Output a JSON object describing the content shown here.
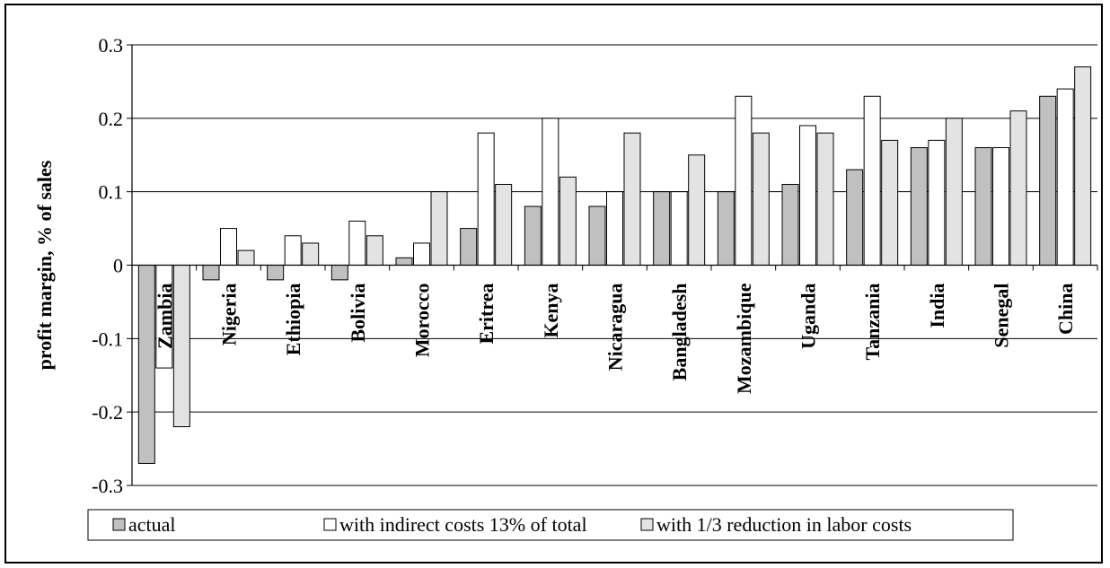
{
  "chart_data": {
    "type": "bar",
    "title": "",
    "xlabel": "",
    "ylabel": "profit margin, % of sales",
    "ylim": [
      -0.3,
      0.3
    ],
    "yticks": [
      "0.3",
      "0.2",
      "0.1",
      "0",
      "-0.1",
      "-0.2",
      "-0.3"
    ],
    "grid": true,
    "legend_position": "bottom",
    "categories": [
      "Zambia",
      "Nigeria",
      "Ethiopia",
      "Bolivia",
      "Morocco",
      "Eritrea",
      "Kenya",
      "Nicaragua",
      "Bangladesh",
      "Mozambique",
      "Uganda",
      "Tanzania",
      "India",
      "Senegal",
      "China"
    ],
    "series": [
      {
        "name": "actual",
        "color": "#c0c0c0",
        "values": [
          -0.27,
          -0.02,
          -0.02,
          -0.02,
          0.01,
          0.05,
          0.08,
          0.08,
          0.1,
          0.1,
          0.11,
          0.13,
          0.16,
          0.16,
          0.23
        ]
      },
      {
        "name": "with indirect costs 13% of total",
        "color": "#ffffff",
        "values": [
          -0.14,
          0.05,
          0.04,
          0.06,
          0.03,
          0.18,
          0.2,
          0.1,
          0.1,
          0.23,
          0.19,
          0.23,
          0.17,
          0.16,
          0.24
        ]
      },
      {
        "name": "with 1/3 reduction in labor costs",
        "color": "#e3e3e3",
        "values": [
          -0.22,
          0.02,
          0.03,
          0.04,
          0.1,
          0.11,
          0.12,
          0.18,
          0.15,
          0.18,
          0.18,
          0.17,
          0.2,
          0.21,
          0.27
        ]
      }
    ]
  }
}
